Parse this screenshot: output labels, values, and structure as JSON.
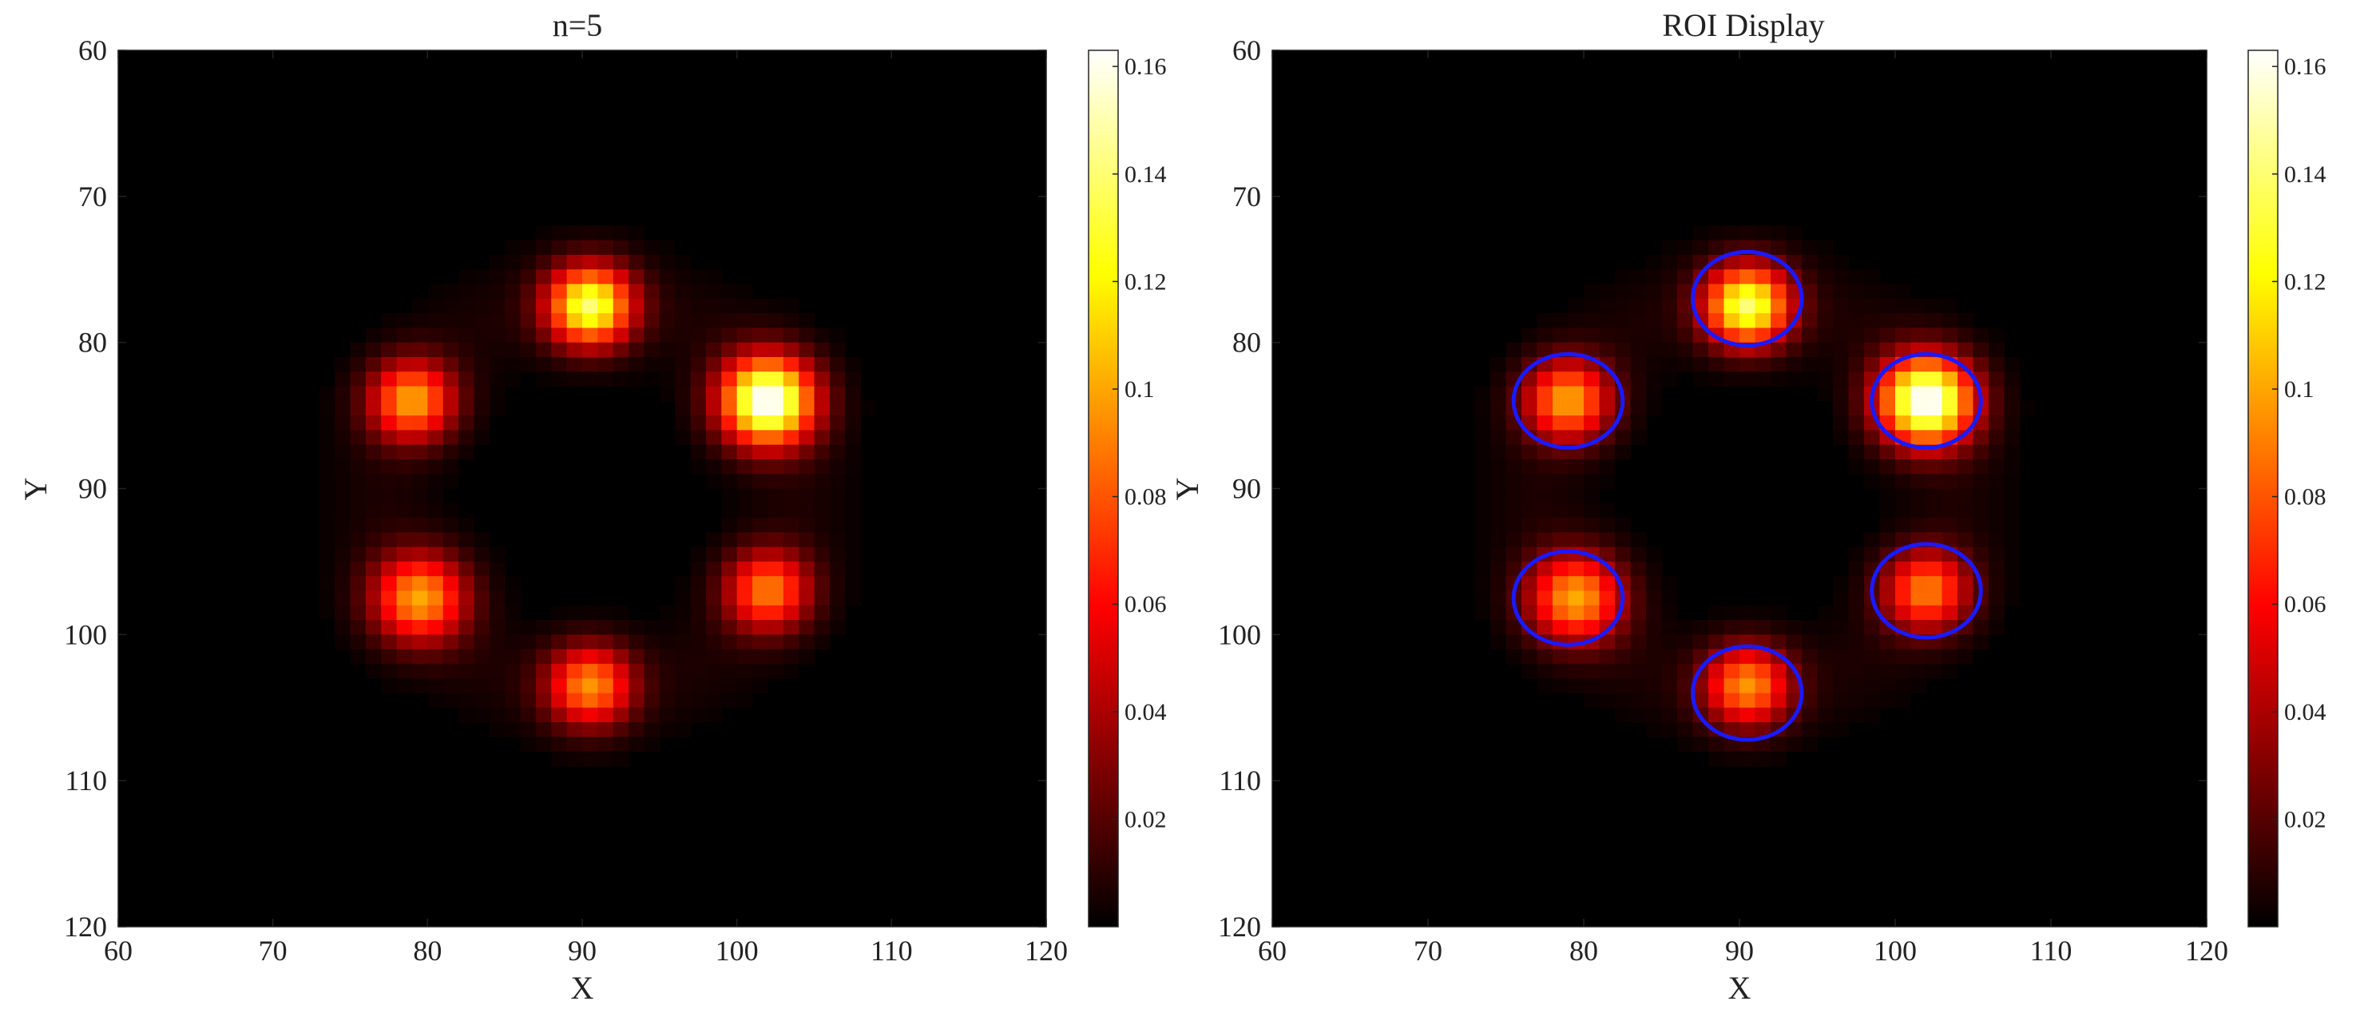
{
  "chart_data": [
    {
      "type": "heatmap",
      "title": "n=5",
      "xlabel": "X",
      "ylabel": "Y",
      "xlim": [
        60,
        120
      ],
      "ylim": [
        60,
        120
      ],
      "y_axis_inverted": true,
      "x_ticks": [
        60,
        70,
        80,
        90,
        100,
        110,
        120
      ],
      "y_ticks": [
        60,
        70,
        80,
        90,
        100,
        110,
        120
      ],
      "x_tick_labels": [
        "60",
        "70",
        "80",
        "90",
        "100",
        "110",
        "120"
      ],
      "y_tick_labels": [
        "60",
        "70",
        "80",
        "90",
        "100",
        "110",
        "120"
      ],
      "colormap": "hot",
      "color_range": [
        0,
        0.163
      ],
      "colorbar_ticks": [
        0.02,
        0.04,
        0.06,
        0.08,
        0.1,
        0.12,
        0.14,
        0.16
      ],
      "colorbar_tick_labels": [
        "0.02",
        "0.04",
        "0.06",
        "0.08",
        "0.1",
        "0.12",
        "0.14",
        "0.16"
      ],
      "grid": false,
      "pixel_size": 1,
      "spots": [
        {
          "x": 90.5,
          "y": 77.5,
          "peak": 0.135,
          "sigma": 1.9
        },
        {
          "x": 79,
          "y": 84,
          "peak": 0.095,
          "sigma": 1.9
        },
        {
          "x": 102,
          "y": 84,
          "peak": 0.163,
          "sigma": 2.1
        },
        {
          "x": 79.5,
          "y": 97.5,
          "peak": 0.095,
          "sigma": 2.1
        },
        {
          "x": 102,
          "y": 97,
          "peak": 0.085,
          "sigma": 1.9
        },
        {
          "x": 90.5,
          "y": 103.5,
          "peak": 0.09,
          "sigma": 1.9
        }
      ],
      "ring": {
        "cx": 90.5,
        "cy": 90.5,
        "r": 13.5,
        "width": 2.6,
        "level": 0.006
      },
      "rois": []
    },
    {
      "type": "heatmap",
      "title": "ROI Display",
      "xlabel": "X",
      "ylabel": "Y",
      "xlim": [
        60,
        120
      ],
      "ylim": [
        60,
        120
      ],
      "y_axis_inverted": true,
      "x_ticks": [
        60,
        70,
        80,
        90,
        100,
        110,
        120
      ],
      "y_ticks": [
        60,
        70,
        80,
        90,
        100,
        110,
        120
      ],
      "x_tick_labels": [
        "60",
        "70",
        "80",
        "90",
        "100",
        "110",
        "120"
      ],
      "y_tick_labels": [
        "60",
        "70",
        "80",
        "90",
        "100",
        "110",
        "120"
      ],
      "colormap": "hot",
      "color_range": [
        0,
        0.163
      ],
      "colorbar_ticks": [
        0.02,
        0.04,
        0.06,
        0.08,
        0.1,
        0.12,
        0.14,
        0.16
      ],
      "colorbar_tick_labels": [
        "0.02",
        "0.04",
        "0.06",
        "0.08",
        "0.1",
        "0.12",
        "0.14",
        "0.16"
      ],
      "grid": false,
      "pixel_size": 1,
      "spots": [
        {
          "x": 90.5,
          "y": 77.5,
          "peak": 0.135,
          "sigma": 1.9
        },
        {
          "x": 79,
          "y": 84,
          "peak": 0.095,
          "sigma": 1.9
        },
        {
          "x": 102,
          "y": 84,
          "peak": 0.163,
          "sigma": 2.1
        },
        {
          "x": 79.5,
          "y": 97.5,
          "peak": 0.095,
          "sigma": 2.1
        },
        {
          "x": 102,
          "y": 97,
          "peak": 0.085,
          "sigma": 1.9
        },
        {
          "x": 90.5,
          "y": 103.5,
          "peak": 0.09,
          "sigma": 1.9
        }
      ],
      "ring": {
        "cx": 90.5,
        "cy": 90.5,
        "r": 13.5,
        "width": 2.6,
        "level": 0.006
      },
      "roi_color": "#1a1aff",
      "rois": [
        {
          "cx": 90.5,
          "cy": 77,
          "rx": 3.5,
          "ry": 3.2
        },
        {
          "cx": 79,
          "cy": 84,
          "rx": 3.5,
          "ry": 3.2
        },
        {
          "cx": 102,
          "cy": 84,
          "rx": 3.5,
          "ry": 3.2
        },
        {
          "cx": 79,
          "cy": 97.5,
          "rx": 3.5,
          "ry": 3.2
        },
        {
          "cx": 102,
          "cy": 97,
          "rx": 3.5,
          "ry": 3.2
        },
        {
          "cx": 90.5,
          "cy": 104,
          "rx": 3.5,
          "ry": 3.2
        }
      ]
    }
  ]
}
